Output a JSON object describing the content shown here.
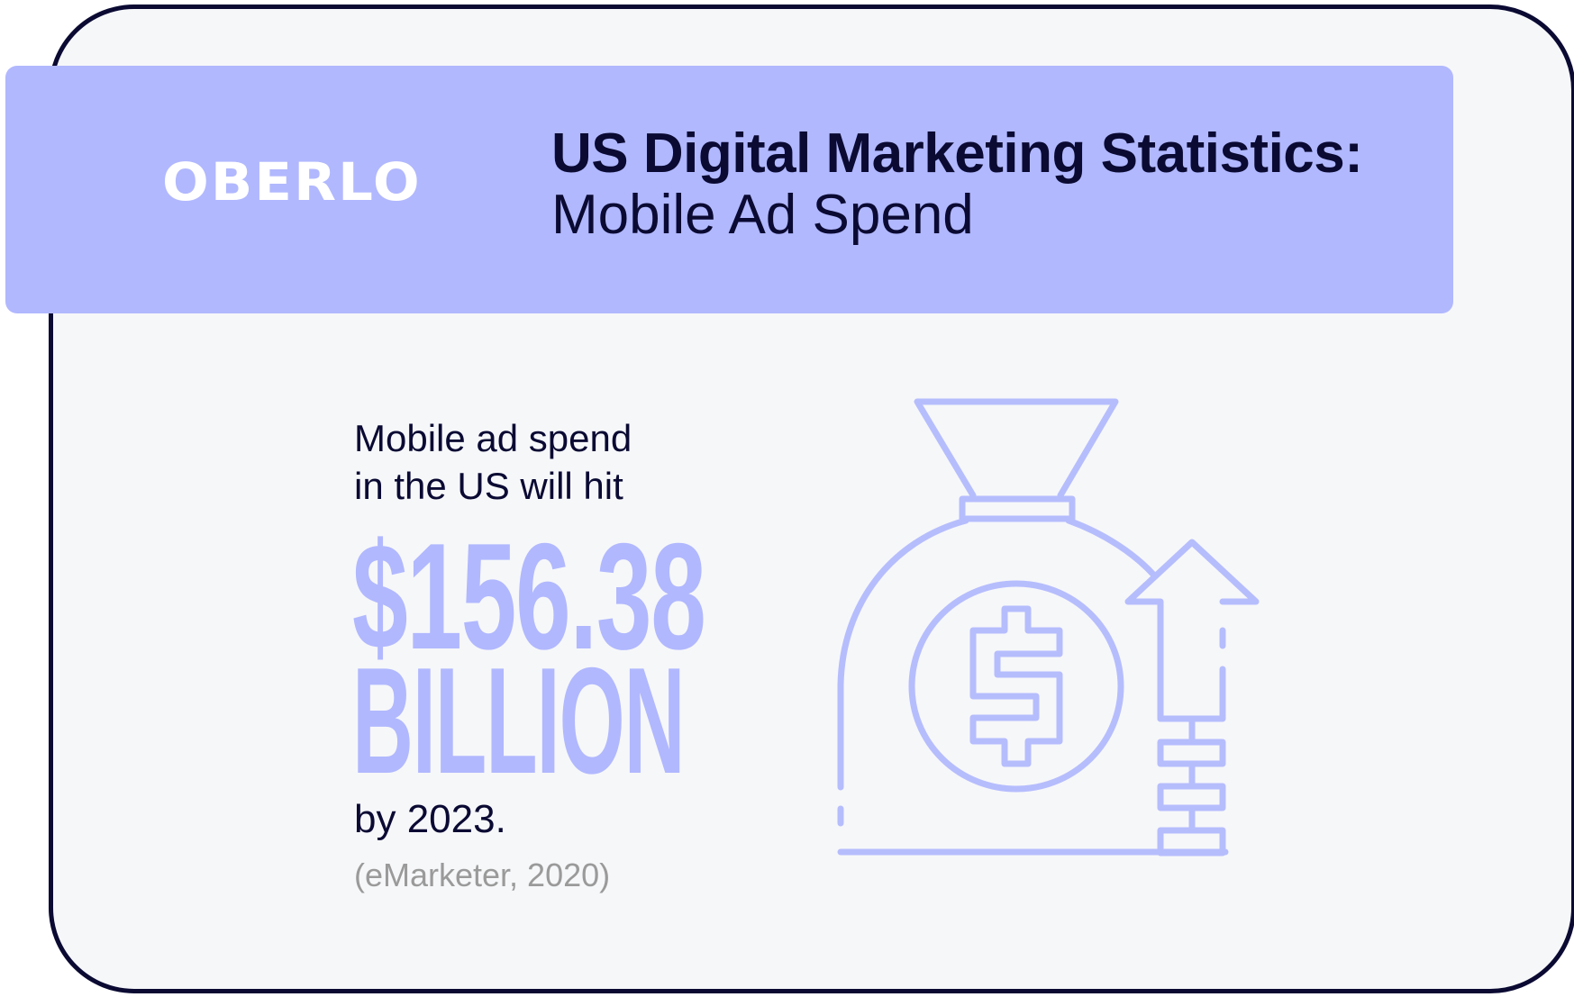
{
  "brand": {
    "logo_text": "OBERLO"
  },
  "header": {
    "title": "US Digital Marketing Statistics:",
    "subtitle": "Mobile Ad Spend"
  },
  "stat": {
    "intro_line1": "Mobile ad spend",
    "intro_line2": "in the US will hit",
    "value": "$156.38",
    "unit": "BILLION",
    "outro": "by 2023.",
    "source": "(eMarketer, 2020)"
  },
  "illustration": {
    "icon": "money-bag-with-up-arrow-icon"
  },
  "colors": {
    "band": "#b1b8fe",
    "background": "#f6f7f9",
    "text": "#0a0a33",
    "accent": "#b1b8fe",
    "source": "#9a9a9a",
    "icon_stroke": "#b6bdfd"
  }
}
